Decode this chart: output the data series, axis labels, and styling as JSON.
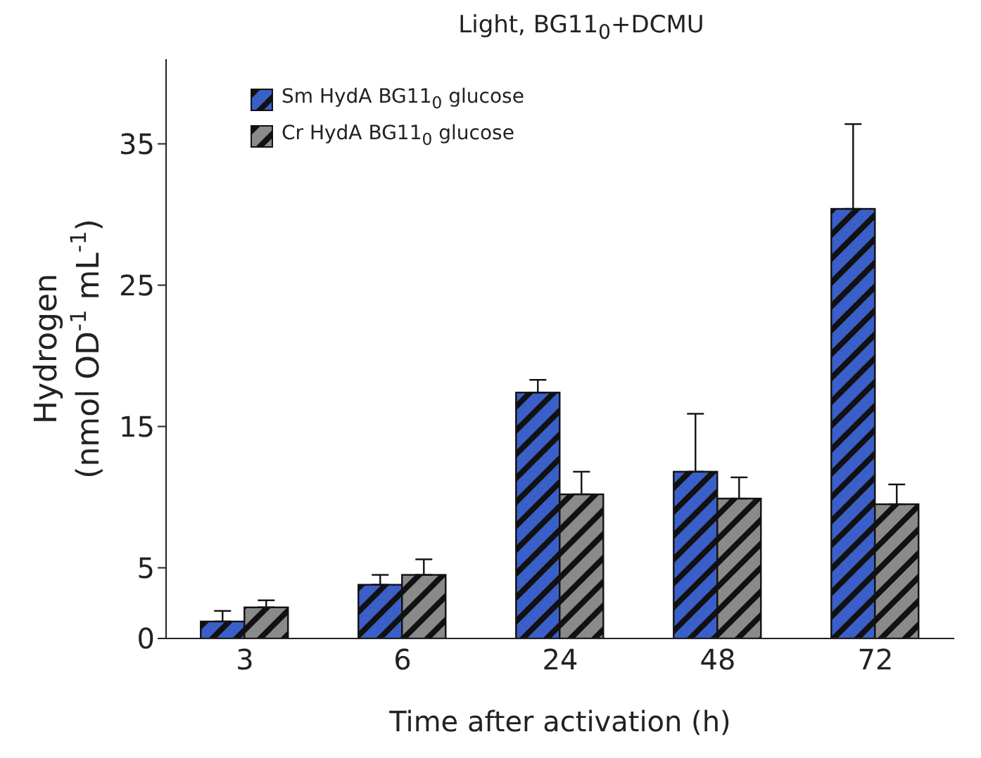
{
  "chart_data": {
    "type": "bar",
    "title": "Light, BG11$_{0}$+DCMU",
    "xlabel": "Time after activation (h)",
    "ylabel": "Hydrogen\n(nmol OD$^{-1}$ mL$^{-1}$)",
    "categories": [
      "3",
      "6",
      "24",
      "48",
      "72"
    ],
    "series": [
      {
        "name": "Sm HydA BG11$_{0}$ glucose",
        "color": "#3b5fc8",
        "values": [
          1.2,
          3.8,
          17.4,
          11.8,
          30.4
        ],
        "errors": [
          [
            1.2,
            1.95
          ],
          [
            3.8,
            4.5
          ],
          [
            17.4,
            18.3
          ],
          [
            11.8,
            15.9
          ],
          [
            30.4,
            36.4
          ]
        ]
      },
      {
        "name": "Cr HydA BG11$_{0}$ glucose",
        "color": "#8a8a8a",
        "values": [
          2.2,
          4.5,
          10.2,
          9.9,
          9.5
        ],
        "errors": [
          [
            2.2,
            2.7
          ],
          [
            4.5,
            5.6
          ],
          [
            10.2,
            11.8
          ],
          [
            9.9,
            11.4
          ],
          [
            9.5,
            10.9
          ]
        ]
      }
    ],
    "ylim": [
      0,
      41
    ],
    "yticks": [
      0,
      5,
      15,
      25,
      35
    ],
    "grid": false,
    "legend": "top left"
  }
}
